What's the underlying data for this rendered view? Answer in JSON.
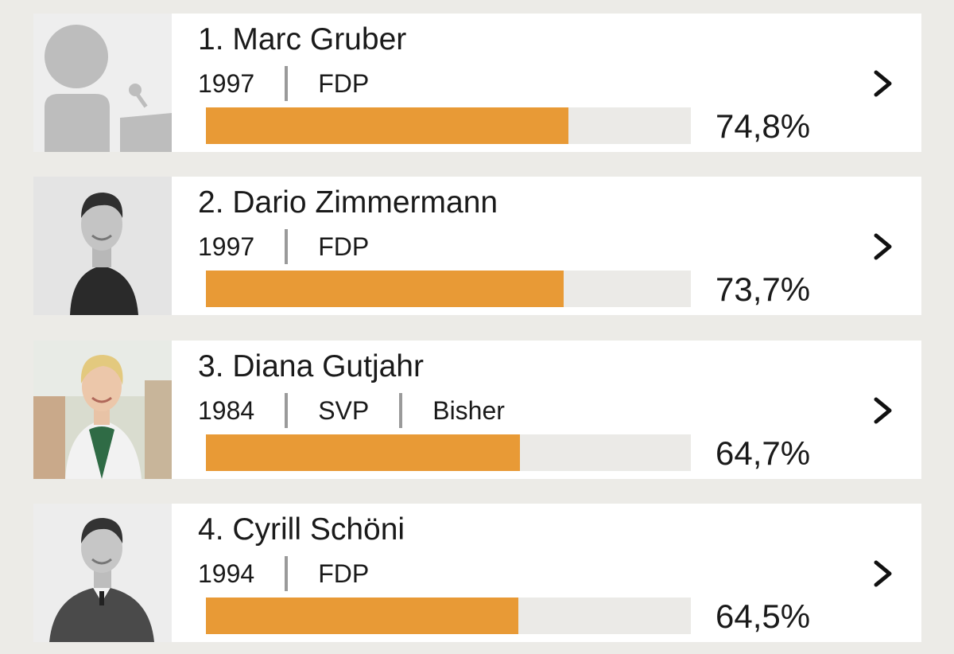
{
  "candidates": [
    {
      "name": "1. Marc Gruber",
      "year": "1997",
      "party": "FDP",
      "status": "",
      "percent_label": "74,8%",
      "percent": 74.8,
      "photo": "placeholder-silhouette"
    },
    {
      "name": "2. Dario Zimmermann",
      "year": "1997",
      "party": "FDP",
      "status": "",
      "percent_label": "73,7%",
      "percent": 73.7,
      "photo": "portrait-man-dark-polo"
    },
    {
      "name": "3. Diana Gutjahr",
      "year": "1984",
      "party": "SVP",
      "status": "Bisher",
      "percent_label": "64,7%",
      "percent": 64.7,
      "photo": "portrait-woman-white-blazer"
    },
    {
      "name": "4. Cyrill Schöni",
      "year": "1994",
      "party": "FDP",
      "status": "",
      "percent_label": "64,5%",
      "percent": 64.5,
      "photo": "portrait-man-grey-sweater"
    }
  ],
  "colors": {
    "bar_fill": "#e89a36",
    "bar_track": "#ebeae7",
    "background": "#ecebe7"
  },
  "icons": {
    "row_action": "chevron-right-icon"
  }
}
